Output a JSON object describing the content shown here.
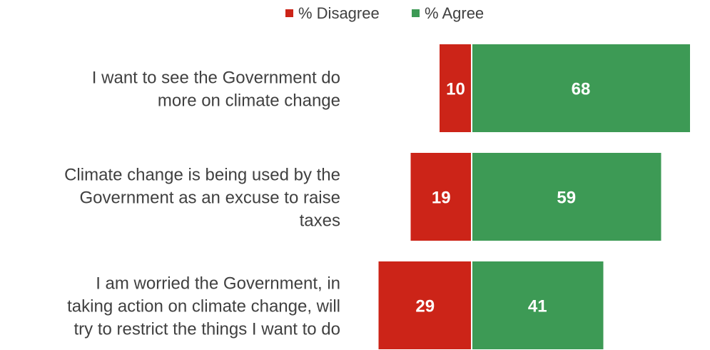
{
  "chart_data": {
    "type": "bar",
    "orientation": "horizontal",
    "stacking": "diverging",
    "categories": [
      [
        "I want to see the Government do",
        "more on climate change"
      ],
      [
        "Climate change is being used by the",
        "Government as an excuse to raise",
        "taxes"
      ],
      [
        "I am worried the Government, in",
        "taking action on climate change, will",
        "try to restrict the things I want to do"
      ]
    ],
    "series": [
      {
        "name": "% Disagree",
        "color": "#cc2418",
        "values": [
          10,
          19,
          29
        ]
      },
      {
        "name": "% Agree",
        "color": "#3d9a55",
        "values": [
          68,
          59,
          41
        ]
      }
    ],
    "legend": {
      "position": "top",
      "items": [
        "% Disagree",
        "% Agree"
      ]
    },
    "title": "",
    "xlabel": "",
    "ylabel": "",
    "grid": false,
    "data_labels": true
  }
}
